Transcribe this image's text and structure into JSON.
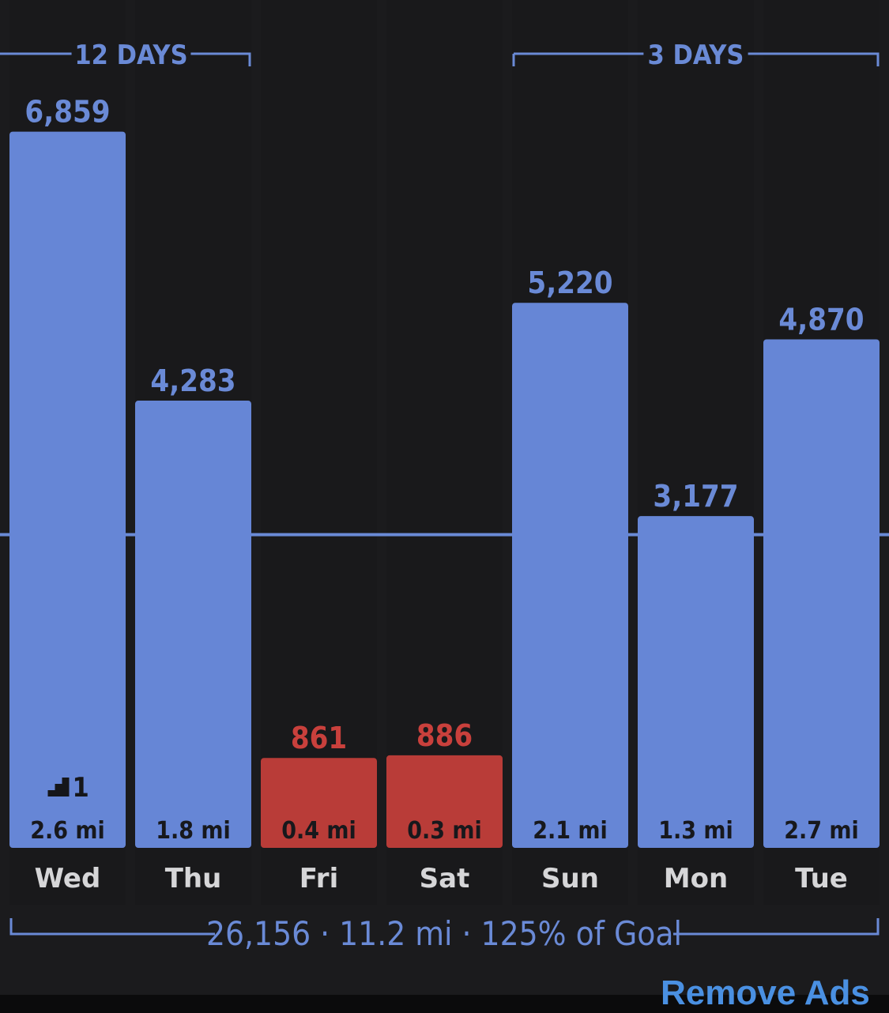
{
  "chart_data": {
    "type": "bar",
    "categories": [
      "Wed",
      "Thu",
      "Fri",
      "Sat",
      "Sun",
      "Mon",
      "Tue"
    ],
    "values": [
      6859,
      4283,
      861,
      886,
      5220,
      3177,
      4870
    ],
    "value_labels": [
      "6,859",
      "4,283",
      "861",
      "886",
      "5,220",
      "3,177",
      "4,870"
    ],
    "distance_labels": [
      "2.6 mi",
      "1.8 mi",
      "0.4 mi",
      "0.3 mi",
      "2.1 mi",
      "1.3 mi",
      "2.7 mi"
    ],
    "below_goal": [
      false,
      false,
      true,
      true,
      false,
      false,
      false
    ],
    "goal_value": 3000,
    "ylim": [
      0,
      7000
    ],
    "flights": {
      "day_index": 0,
      "label": "1"
    },
    "streaks": [
      {
        "label": "12 DAYS",
        "start_index": 0,
        "end_index": 1
      },
      {
        "label": "3 DAYS",
        "start_index": 4,
        "end_index": 6
      }
    ],
    "summary": "26,156 · 11.2 mi · 125% of Goal",
    "colors": {
      "bar": "#6686d6",
      "bar_below_goal": "#b93c38",
      "label_below_goal": "#c9403c",
      "accent": "#6a8ad6",
      "day_label": "#d6d6d8",
      "cell": "#19191b",
      "chart_background": "#1b1b1d"
    }
  },
  "footer": {
    "remove_ads_label": "Remove Ads"
  }
}
